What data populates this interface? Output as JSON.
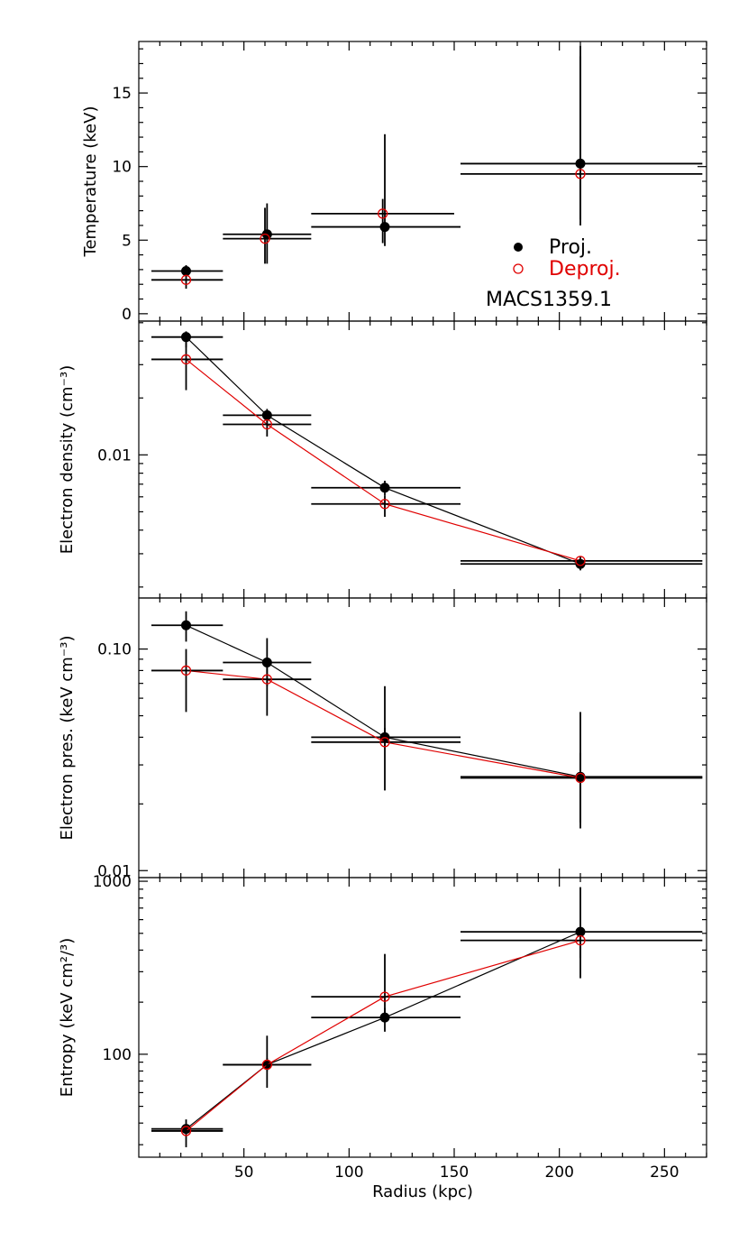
{
  "chart_data": [
    {
      "type": "scatter",
      "ylabel": "Temperature (keV)",
      "ylim": [
        -0.5,
        18.5
      ],
      "yscale": "linear",
      "yticks": [
        {
          "v": 0,
          "label": "0"
        },
        {
          "v": 5,
          "label": "5"
        },
        {
          "v": 10,
          "label": "10"
        },
        {
          "v": 15,
          "label": "15"
        }
      ],
      "connect_lines": false,
      "series": [
        {
          "name": "Proj.",
          "marker": "filled",
          "color": "#000000",
          "points": [
            {
              "x": 22.5,
              "xerr": [
                6,
                40
              ],
              "y": 2.9,
              "yerr": [
                2.6,
                3.3
              ]
            },
            {
              "x": 61,
              "xerr": [
                40,
                82
              ],
              "y": 5.4,
              "yerr": [
                3.4,
                7.5
              ]
            },
            {
              "x": 117,
              "xerr": [
                82,
                153
              ],
              "y": 5.9,
              "yerr": [
                4.6,
                12.2
              ]
            },
            {
              "x": 210,
              "xerr": [
                153,
                268
              ],
              "y": 10.2,
              "yerr": [
                6.0,
                18.2
              ]
            }
          ]
        },
        {
          "name": "Deproj.",
          "marker": "open",
          "color": "#e00000",
          "points": [
            {
              "x": 22.5,
              "xerr": [
                6,
                40
              ],
              "y": 2.3,
              "yerr": [
                1.7,
                3.0
              ]
            },
            {
              "x": 60,
              "xerr": [
                40,
                82
              ],
              "y": 5.1,
              "yerr": [
                3.4,
                7.2
              ]
            },
            {
              "x": 116,
              "xerr": [
                82,
                150
              ],
              "y": 6.8,
              "yerr": [
                4.8,
                7.8
              ]
            },
            {
              "x": 210,
              "xerr": [
                153,
                268
              ],
              "y": 9.5,
              "yerr": [
                6.4,
                17.5
              ]
            }
          ]
        }
      ],
      "legend": {
        "position": "inside-right",
        "entries": [
          "Proj.",
          "Deproj."
        ]
      },
      "annotation": "MACS1359.1"
    },
    {
      "type": "line",
      "ylabel": "Electron density (cm⁻³)",
      "ylim": [
        0.00175,
        0.051
      ],
      "yscale": "log",
      "yticks": [
        {
          "v": 0.01,
          "label": "0.01"
        }
      ],
      "connect_lines": true,
      "series": [
        {
          "name": "Proj.",
          "marker": "filled",
          "color": "#000000",
          "points": [
            {
              "x": 22.5,
              "xerr": [
                6,
                40
              ],
              "y": 0.042,
              "yerr": [
                0.037,
                0.045
              ]
            },
            {
              "x": 61,
              "xerr": [
                40,
                82
              ],
              "y": 0.0162,
              "yerr": [
                0.0148,
                0.0175
              ]
            },
            {
              "x": 117,
              "xerr": [
                82,
                153
              ],
              "y": 0.0067,
              "yerr": [
                0.0061,
                0.0073
              ]
            },
            {
              "x": 210,
              "xerr": [
                153,
                268
              ],
              "y": 0.00265,
              "yerr": [
                0.00245,
                0.00285
              ]
            }
          ]
        },
        {
          "name": "Deproj.",
          "marker": "open",
          "color": "#e00000",
          "points": [
            {
              "x": 22.5,
              "xerr": [
                6,
                40
              ],
              "y": 0.032,
              "yerr": [
                0.022,
                0.04
              ]
            },
            {
              "x": 61,
              "xerr": [
                40,
                82
              ],
              "y": 0.0145,
              "yerr": [
                0.0125,
                0.0165
              ]
            },
            {
              "x": 117,
              "xerr": [
                82,
                153
              ],
              "y": 0.0055,
              "yerr": [
                0.0047,
                0.0061
              ]
            },
            {
              "x": 210,
              "xerr": [
                153,
                268
              ],
              "y": 0.00275,
              "yerr": [
                0.0026,
                0.0029
              ]
            }
          ]
        }
      ]
    },
    {
      "type": "line",
      "ylabel": "Electron pres. (keV cm⁻³)",
      "ylim": [
        0.0093,
        0.17
      ],
      "yscale": "log",
      "yticks": [
        {
          "v": 0.01,
          "label": "0.01"
        },
        {
          "v": 0.1,
          "label": "0.10"
        }
      ],
      "connect_lines": true,
      "series": [
        {
          "name": "Proj.",
          "marker": "filled",
          "color": "#000000",
          "points": [
            {
              "x": 22.5,
              "xerr": [
                6,
                40
              ],
              "y": 0.128,
              "yerr": [
                0.108,
                0.148
              ]
            },
            {
              "x": 61,
              "xerr": [
                40,
                82
              ],
              "y": 0.087,
              "yerr": [
                0.068,
                0.112
              ]
            },
            {
              "x": 117,
              "xerr": [
                82,
                153
              ],
              "y": 0.04,
              "yerr": [
                0.036,
                0.068
              ]
            },
            {
              "x": 210,
              "xerr": [
                153,
                268
              ],
              "y": 0.0265,
              "yerr": [
                0.0155,
                0.052
              ]
            }
          ]
        },
        {
          "name": "Deproj.",
          "marker": "open",
          "color": "#e00000",
          "points": [
            {
              "x": 22.5,
              "xerr": [
                6,
                40
              ],
              "y": 0.08,
              "yerr": [
                0.052,
                0.1
              ]
            },
            {
              "x": 61,
              "xerr": [
                40,
                82
              ],
              "y": 0.073,
              "yerr": [
                0.05,
                0.086
              ]
            },
            {
              "x": 117,
              "xerr": [
                82,
                153
              ],
              "y": 0.038,
              "yerr": [
                0.023,
                0.044
              ]
            },
            {
              "x": 210,
              "xerr": [
                153,
                268
              ],
              "y": 0.0262,
              "yerr": [
                0.0165,
                0.034
              ]
            }
          ]
        }
      ]
    },
    {
      "type": "line",
      "ylabel": "Entropy (keV cm²/³)",
      "xlabel": "Radius (kpc)",
      "xlim": [
        0,
        270
      ],
      "xticks": [
        50,
        100,
        150,
        200,
        250
      ],
      "ylim": [
        25.4,
        1050
      ],
      "yscale": "log",
      "yticks": [
        {
          "v": 100,
          "label": "100"
        },
        {
          "v": 1000,
          "label": "1000"
        }
      ],
      "connect_lines": true,
      "series": [
        {
          "name": "Proj.",
          "marker": "filled",
          "color": "#000000",
          "points": [
            {
              "x": 22.5,
              "xerr": [
                6,
                40
              ],
              "y": 37,
              "yerr": [
                35,
                39
              ]
            },
            {
              "x": 61,
              "xerr": [
                40,
                82
              ],
              "y": 87,
              "yerr": [
                80,
                95
              ]
            },
            {
              "x": 117,
              "xerr": [
                82,
                153
              ],
              "y": 163,
              "yerr": [
                135,
                185
              ]
            },
            {
              "x": 210,
              "xerr": [
                153,
                268
              ],
              "y": 510,
              "yerr": [
                275,
                925
              ]
            }
          ]
        },
        {
          "name": "Deproj.",
          "marker": "open",
          "color": "#e00000",
          "points": [
            {
              "x": 22.5,
              "xerr": [
                6,
                40
              ],
              "y": 36,
              "yerr": [
                29,
                42
              ]
            },
            {
              "x": 61,
              "xerr": [
                40,
                82
              ],
              "y": 87,
              "yerr": [
                64,
                128
              ]
            },
            {
              "x": 117,
              "xerr": [
                82,
                153
              ],
              "y": 215,
              "yerr": [
                160,
                380
              ]
            },
            {
              "x": 210,
              "xerr": [
                153,
                268
              ],
              "y": 455,
              "yerr": [
                360,
                530
              ]
            }
          ]
        }
      ]
    }
  ]
}
